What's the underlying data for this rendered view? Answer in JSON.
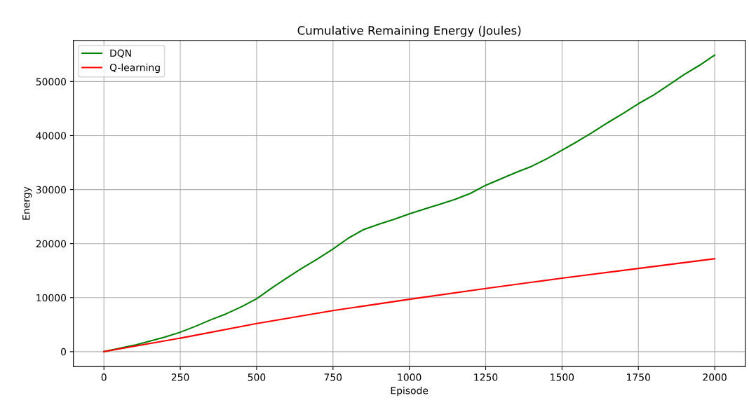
{
  "chart_data": {
    "type": "line",
    "title": "Cumulative Remaining Energy (Joules)",
    "xlabel": "Episode",
    "ylabel": "Energy",
    "xlim": [
      -100,
      2100
    ],
    "ylim": [
      -2750,
      57600
    ],
    "xticks": [
      0,
      250,
      500,
      750,
      1000,
      1250,
      1500,
      1750,
      2000
    ],
    "yticks": [
      0,
      10000,
      20000,
      30000,
      40000,
      50000
    ],
    "grid": true,
    "legend": "top left",
    "x": [
      0,
      100,
      200,
      250,
      300,
      350,
      400,
      450,
      500,
      550,
      600,
      650,
      700,
      750,
      800,
      850,
      900,
      950,
      1000,
      1050,
      1100,
      1150,
      1200,
      1250,
      1300,
      1350,
      1400,
      1450,
      1500,
      1550,
      1600,
      1650,
      1700,
      1750,
      1800,
      1850,
      1900,
      1950,
      2000
    ],
    "series": [
      {
        "name": "DQN",
        "color": "#008000",
        "values": [
          0,
          1200,
          2700,
          3600,
          4700,
          5900,
          7000,
          8300,
          9800,
          11800,
          13700,
          15500,
          17200,
          19000,
          21000,
          22600,
          23600,
          24500,
          25500,
          26400,
          27300,
          28200,
          29300,
          30800,
          32000,
          33200,
          34300,
          35700,
          37300,
          38900,
          40600,
          42400,
          44100,
          45900,
          47500,
          49400,
          51300,
          53000,
          54900
        ]
      },
      {
        "name": "Q-learning",
        "color": "#ff0000",
        "x": [
          0,
          250,
          500,
          750,
          1000,
          1250,
          1500,
          1750,
          2000
        ],
        "values": [
          0,
          2500,
          5200,
          7600,
          9700,
          11700,
          13600,
          15400,
          17200
        ]
      }
    ]
  }
}
